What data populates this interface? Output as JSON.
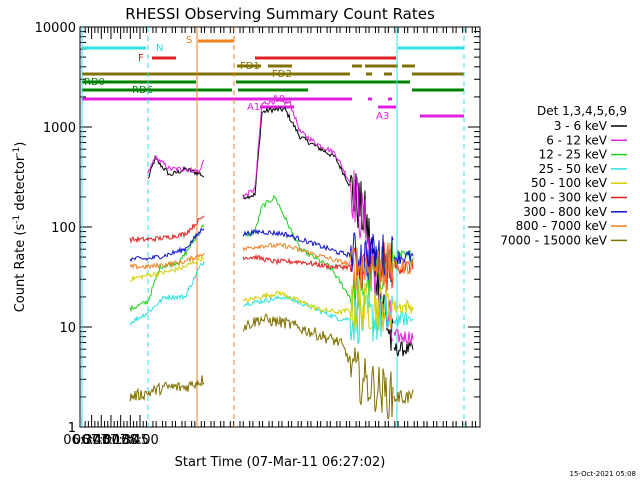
{
  "chart_data": {
    "type": "line",
    "title": "RHESSI Observing Summary Count Rates",
    "xlabel": "Start Time (07-Mar-11 06:27:02)",
    "ylabel": "Count Rate (s",
    "ylabel_sup": "-1",
    "ylabel_tail": " detector",
    "ylabel_sup2": "-1",
    "ylabel_close": ")",
    "yscale": "log",
    "ylim": [
      1,
      10000
    ],
    "xlim_min": [
      387,
      1007
    ],
    "yticks": [
      {
        "v": 1,
        "label": "1"
      },
      {
        "v": 10,
        "label": "10"
      },
      {
        "v": 100,
        "label": "100"
      },
      {
        "v": 1000,
        "label": "1000"
      },
      {
        "v": 10000,
        "label": "10000"
      }
    ],
    "xticks": [
      {
        "m": 390,
        "label": "06:30"
      },
      {
        "m": 405,
        "label": "06:45"
      },
      {
        "m": 420,
        "label": "07:00"
      },
      {
        "m": 435,
        "label": "07:15"
      },
      {
        "m": 450,
        "label": "07:30"
      },
      {
        "m": 465,
        "label": "07:45"
      },
      {
        "m": 480,
        "label": "08:00"
      }
    ],
    "legend_title": "Det 1,3,4,5,6,9",
    "legend_position": "right",
    "series": [
      {
        "name": "3 - 6 keV",
        "color": "#000000"
      },
      {
        "name": "6 - 12 keV",
        "color": "#e020e0"
      },
      {
        "name": "12 - 25 keV",
        "color": "#20d020"
      },
      {
        "name": "25 - 50 keV",
        "color": "#30e0e0"
      },
      {
        "name": "50 - 100 keV",
        "color": "#d4d000"
      },
      {
        "name": "100 - 300 keV",
        "color": "#e02020"
      },
      {
        "name": "300 - 800 keV",
        "color": "#1010d0"
      },
      {
        "name": "800 - 7000 keV",
        "color": "#f08020"
      },
      {
        "name": "7000 - 15000 keV",
        "color": "#807000"
      }
    ],
    "flag_labels": {
      "N": "N",
      "S": "S",
      "F": "F",
      "FD1": "FD1",
      "FD2": "FD2",
      "RD0": "RD0",
      "RD6": "RD6",
      "A0": "A0",
      "A1": "A1",
      "A3": "A3"
    },
    "footer": "15-Oct-2021 05:08"
  }
}
